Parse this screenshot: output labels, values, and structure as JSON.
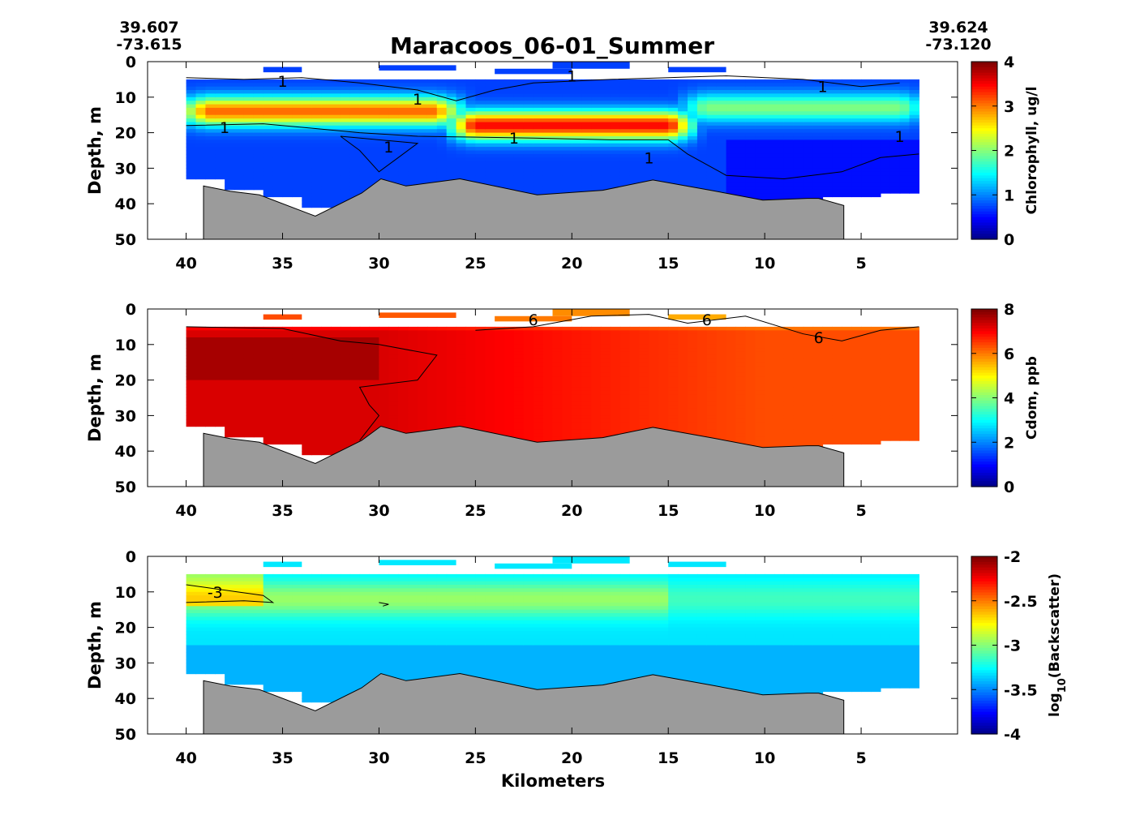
{
  "figure": {
    "title": "Maracoos_06-01_Summer",
    "left_coord": {
      "lat": "39.607",
      "lon": "-73.615"
    },
    "right_coord": {
      "lat": "39.624",
      "lon": "-73.120"
    },
    "xlabel": "Kilometers"
  },
  "chart_data": [
    {
      "type": "heatmap",
      "variable": "chlorophyll",
      "xlabel": "",
      "ylabel": "Depth, m",
      "colorbar_label": "Chlorophyll, ug/l",
      "xlim": [
        42,
        0
      ],
      "ylim": [
        50,
        0
      ],
      "xticks": [
        40,
        35,
        30,
        25,
        20,
        15,
        10,
        5
      ],
      "yticks": [
        0,
        10,
        20,
        30,
        40,
        50
      ],
      "clim": [
        0,
        4
      ],
      "cbticks": [
        "0",
        "1",
        "2",
        "3",
        "4"
      ],
      "colormap": "jet",
      "background_value": 0.75,
      "features": [
        {
          "km_range": [
            40,
            26
          ],
          "depth": 14,
          "thickness": 4,
          "value": 3.1
        },
        {
          "km_range": [
            26,
            14
          ],
          "depth": 18,
          "thickness": 4,
          "value": 3.5
        },
        {
          "km_range": [
            14,
            2
          ],
          "depth": 13,
          "thickness": 4,
          "value": 2.0
        }
      ],
      "contour_level": 1,
      "contour_labels": [
        "1",
        "1",
        "1",
        "1",
        "1",
        "1",
        "1",
        "1",
        "1",
        "1"
      ]
    },
    {
      "type": "heatmap",
      "variable": "cdom",
      "xlabel": "",
      "ylabel": "Depth, m",
      "colorbar_label": "Cdom, ppb",
      "xlim": [
        42,
        0
      ],
      "ylim": [
        50,
        0
      ],
      "xticks": [
        40,
        35,
        30,
        25,
        20,
        15,
        10,
        5
      ],
      "yticks": [
        0,
        10,
        20,
        30,
        40,
        50
      ],
      "clim": [
        0,
        8
      ],
      "cbticks": [
        "0",
        "2",
        "4",
        "6",
        "8"
      ],
      "colormap": "jet",
      "west_value": 7.3,
      "east_value": 6.4,
      "contour_level": 6,
      "contour_labels": [
        "6",
        "6",
        "6"
      ]
    },
    {
      "type": "heatmap",
      "variable": "backscatter",
      "xlabel": "Kilometers",
      "ylabel": "Depth, m",
      "colorbar_label": "log10(Backscatter)",
      "xlim": [
        42,
        0
      ],
      "ylim": [
        50,
        0
      ],
      "xticks": [
        40,
        35,
        30,
        25,
        20,
        15,
        10,
        5
      ],
      "yticks": [
        0,
        10,
        20,
        30,
        40,
        50
      ],
      "clim": [
        -4,
        -2
      ],
      "cbticks": [
        "-2",
        "-2.5",
        "-3",
        "-3.5",
        "-4"
      ],
      "colormap": "jet",
      "background_value": -3.3,
      "contour_level": -3,
      "contour_labels": [
        "-3"
      ]
    }
  ],
  "survey": {
    "data_top_depth": 5,
    "coverage_bottom": [
      {
        "km": 40,
        "depth": 33
      },
      {
        "km": 38,
        "depth": 33
      },
      {
        "km": 38,
        "depth": 36
      },
      {
        "km": 36,
        "depth": 36
      },
      {
        "km": 36,
        "depth": 38
      },
      {
        "km": 34,
        "depth": 38
      },
      {
        "km": 34,
        "depth": 41
      },
      {
        "km": 31,
        "depth": 41
      },
      {
        "km": 31,
        "depth": 37
      },
      {
        "km": 28,
        "depth": 37
      },
      {
        "km": 26,
        "depth": 36
      },
      {
        "km": 22,
        "depth": 38
      },
      {
        "km": 19,
        "depth": 37
      },
      {
        "km": 16,
        "depth": 34
      },
      {
        "km": 13,
        "depth": 37
      },
      {
        "km": 10,
        "depth": 39
      },
      {
        "km": 4,
        "depth": 37
      },
      {
        "km": 2,
        "depth": 37
      }
    ],
    "surface_patches": [
      {
        "km": [
          36,
          34
        ],
        "depth": [
          1.5,
          3
        ]
      },
      {
        "km": [
          30,
          26
        ],
        "depth": [
          1,
          2.5
        ]
      },
      {
        "km": [
          21,
          17
        ],
        "depth": [
          0,
          2
        ]
      },
      {
        "km": [
          15,
          12
        ],
        "depth": [
          1.5,
          3
        ]
      },
      {
        "km": [
          24,
          20
        ],
        "depth": [
          2,
          3.5
        ]
      }
    ]
  },
  "bathymetry": [
    {
      "km": 39.1,
      "depth": 35
    },
    {
      "km": 37.7,
      "depth": 36.5
    },
    {
      "km": 36.2,
      "depth": 37.5
    },
    {
      "km": 33.3,
      "depth": 43.5
    },
    {
      "km": 30.9,
      "depth": 37
    },
    {
      "km": 29.9,
      "depth": 33
    },
    {
      "km": 28.6,
      "depth": 35
    },
    {
      "km": 25.8,
      "depth": 33
    },
    {
      "km": 21.8,
      "depth": 37.5
    },
    {
      "km": 18.4,
      "depth": 36.2
    },
    {
      "km": 15.8,
      "depth": 33.3
    },
    {
      "km": 12.8,
      "depth": 36.2
    },
    {
      "km": 10.1,
      "depth": 39
    },
    {
      "km": 7.8,
      "depth": 38.5
    },
    {
      "km": 7.2,
      "depth": 38.5
    },
    {
      "km": 5.9,
      "depth": 40.5
    },
    {
      "km": 5.9,
      "depth": 50
    },
    {
      "km": 39.1,
      "depth": 50
    }
  ],
  "colors": {
    "bathymetry_fill": "#9b9b9b",
    "contour": "#000000"
  }
}
